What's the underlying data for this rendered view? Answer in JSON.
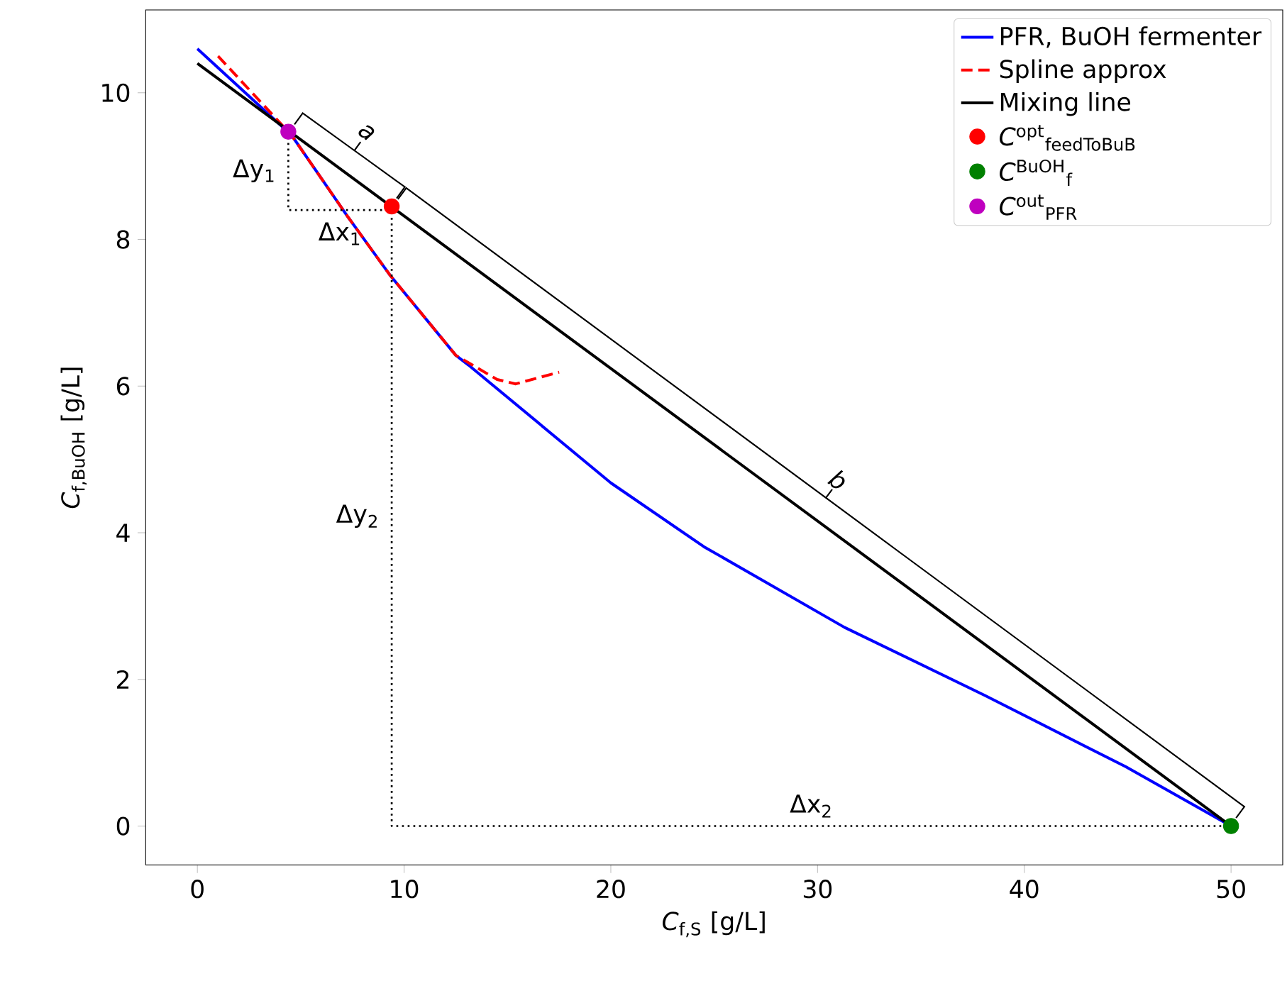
{
  "chart_data": {
    "type": "line",
    "xlabel": "*C*$_{f,S}$ [g/L]",
    "ylabel": "*C*$_{f,BuOH}$ [g/L]",
    "xlim": [
      -2.5,
      52.5
    ],
    "ylim": [
      -0.53,
      11.13
    ],
    "xticks": [
      0,
      10,
      20,
      30,
      40,
      50
    ],
    "yticks": [
      0,
      2,
      4,
      6,
      8,
      10
    ],
    "legend": "top right",
    "series": [
      {
        "name": "PFR, BuOH fermenter",
        "color": "#0000ff",
        "line_style": "solid",
        "marker": "none",
        "x": [
          0,
          4.56,
          7.3,
          9.3,
          12.5,
          13.1,
          20,
          24.5,
          31.3,
          38.1,
          44.9,
          50
        ],
        "values": [
          10.6,
          9.42,
          8.3,
          7.52,
          6.42,
          6.29,
          4.68,
          3.81,
          2.71,
          1.78,
          0.81,
          0
        ]
      },
      {
        "name": "Spline approx",
        "color": "#ff0000",
        "line_style": "dashed",
        "marker": "none",
        "x": [
          1,
          4.56,
          7.3,
          9.3,
          12.5,
          14.5,
          15.4,
          17.5
        ],
        "values": [
          10.5,
          9.42,
          8.3,
          7.52,
          6.42,
          6.09,
          6.03,
          6.19
        ]
      },
      {
        "name": "Mixing line",
        "color": "#000000",
        "line_style": "solid",
        "marker": "none",
        "x": [
          0,
          50
        ],
        "values": [
          10.4,
          0
        ]
      },
      {
        "color": "#000000",
        "line_style": "dotted",
        "marker": "none",
        "x": [
          4.4,
          4.4,
          9.4
        ],
        "values": [
          9.47,
          8.4,
          8.4
        ]
      },
      {
        "color": "#000000",
        "line_style": "dotted",
        "marker": "none",
        "x": [
          9.4,
          9.4,
          50
        ],
        "values": [
          8.45,
          0,
          0
        ]
      },
      {
        "name": "*C*$^{opt}$$_{feedToBuB}$",
        "type": "scatter",
        "color": "#ff0000",
        "marker": "circle",
        "x": [
          9.4
        ],
        "values": [
          8.45
        ]
      },
      {
        "name": "*C*$^{BuOH}$$_{f}$",
        "type": "scatter",
        "color": "#008000",
        "marker": "circle",
        "x": [
          50
        ],
        "values": [
          0
        ]
      },
      {
        "name": "*C*$^{out}$$_{PFR}$",
        "type": "scatter",
        "color": "#bf00bf",
        "marker": "circle",
        "x": [
          4.4
        ],
        "values": [
          9.47
        ]
      }
    ],
    "annotations": [
      "Δy$_{1}$",
      "Δx$_{1}$",
      "Δy$_{2}$",
      "Δx$_{2}$",
      "*a*",
      "*b*"
    ]
  }
}
